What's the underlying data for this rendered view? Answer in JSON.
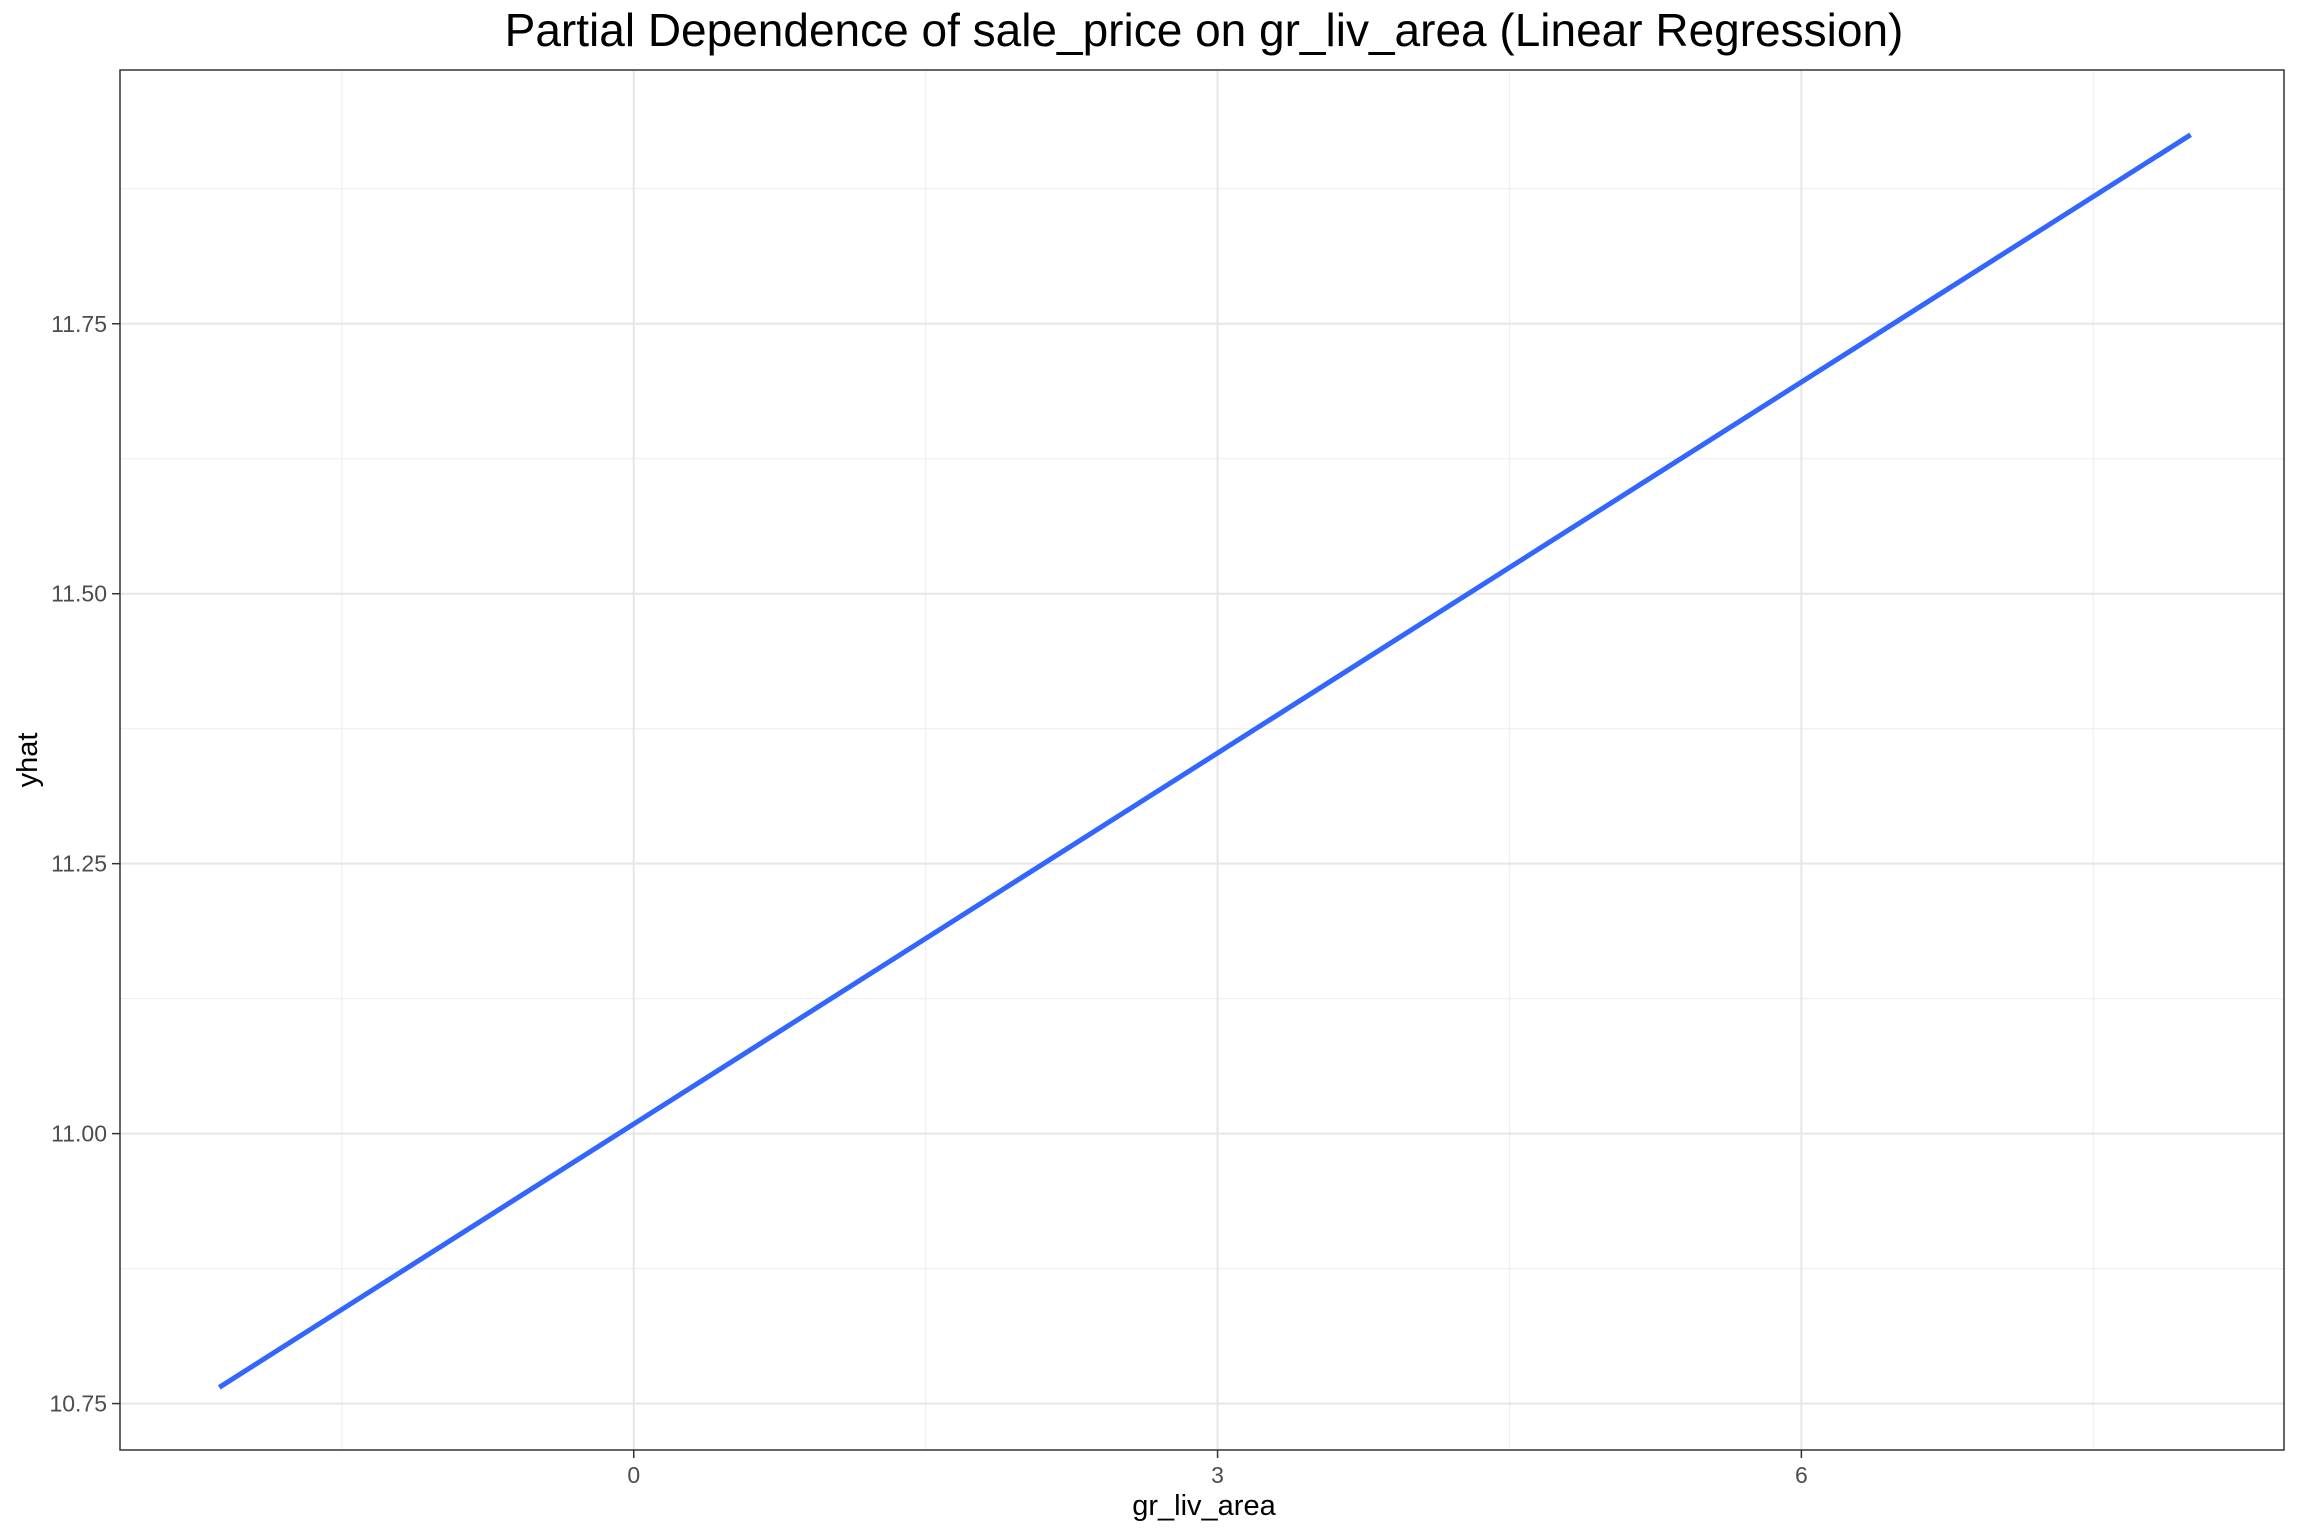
{
  "chart_data": {
    "type": "line",
    "title": "Partial Dependence of sale_price on gr_liv_area (Linear Regression)",
    "xlabel": "gr_liv_area",
    "ylabel": "yhat",
    "xlim": [
      -2.64,
      8.48
    ],
    "ylim": [
      10.707,
      11.985
    ],
    "x_ticks": [
      0,
      3,
      6
    ],
    "x_tick_labels": [
      "0",
      "3",
      "6"
    ],
    "y_ticks": [
      10.75,
      11.0,
      11.25,
      11.5,
      11.75
    ],
    "y_tick_labels": [
      "10.75",
      "11.00",
      "11.25",
      "11.50",
      "11.75"
    ],
    "x_minor_ticks": [
      -1.5,
      1.5,
      4.5,
      7.5
    ],
    "y_minor_ticks": [
      10.875,
      11.125,
      11.375,
      11.625,
      11.875
    ],
    "grid": true,
    "series": [
      {
        "color": "#3366ff",
        "x": [
          -2.13,
          8.0
        ],
        "y": [
          10.765,
          11.925
        ]
      }
    ]
  }
}
